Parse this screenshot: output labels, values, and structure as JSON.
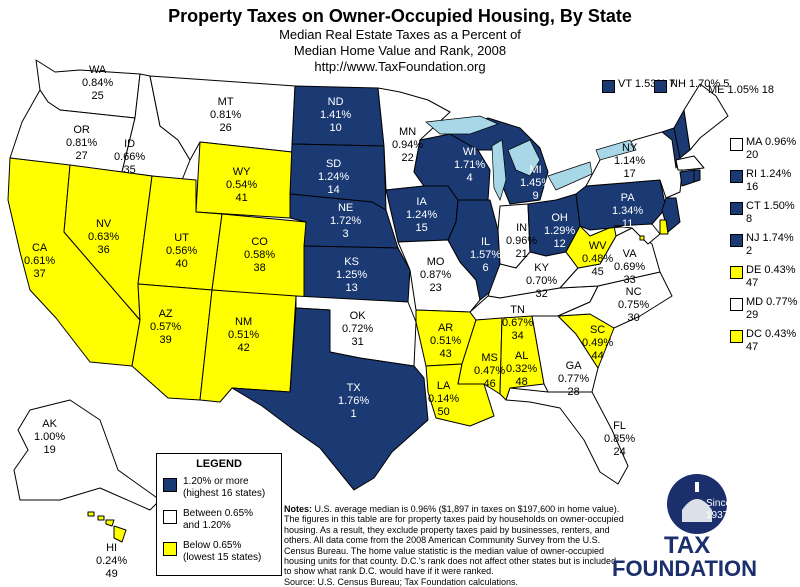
{
  "title": "Property Taxes on Owner-Occupied Housing, By State",
  "subtitle_lines": [
    "Median Real Estate Taxes as a Percent of",
    "Median Home Value and Rank, 2008",
    "http://www.TaxFoundation.org"
  ],
  "colors": {
    "high": "#1b3a73",
    "mid": "#ffffff",
    "low": "#ffff00",
    "lakes": "#a8d8e8",
    "border": "#000000"
  },
  "states": {
    "WA": {
      "pct": "0.84%",
      "rank": "25",
      "tier": "mid"
    },
    "OR": {
      "pct": "0.81%",
      "rank": "27",
      "tier": "mid"
    },
    "CA": {
      "pct": "0.61%",
      "rank": "37",
      "tier": "low"
    },
    "ID": {
      "pct": "0.66%",
      "rank": "35",
      "tier": "mid"
    },
    "NV": {
      "pct": "0.63%",
      "rank": "36",
      "tier": "low"
    },
    "MT": {
      "pct": "0.81%",
      "rank": "26",
      "tier": "mid"
    },
    "WY": {
      "pct": "0.54%",
      "rank": "41",
      "tier": "low"
    },
    "UT": {
      "pct": "0.56%",
      "rank": "40",
      "tier": "low"
    },
    "AZ": {
      "pct": "0.57%",
      "rank": "39",
      "tier": "low"
    },
    "CO": {
      "pct": "0.58%",
      "rank": "38",
      "tier": "low"
    },
    "NM": {
      "pct": "0.51%",
      "rank": "42",
      "tier": "low"
    },
    "ND": {
      "pct": "1.41%",
      "rank": "10",
      "tier": "high"
    },
    "SD": {
      "pct": "1.24%",
      "rank": "14",
      "tier": "high"
    },
    "NE": {
      "pct": "1.72%",
      "rank": "3",
      "tier": "high"
    },
    "KS": {
      "pct": "1.25%",
      "rank": "13",
      "tier": "high"
    },
    "OK": {
      "pct": "0.72%",
      "rank": "31",
      "tier": "mid"
    },
    "TX": {
      "pct": "1.76%",
      "rank": "1",
      "tier": "high"
    },
    "MN": {
      "pct": "0.94%",
      "rank": "22",
      "tier": "mid"
    },
    "IA": {
      "pct": "1.24%",
      "rank": "15",
      "tier": "high"
    },
    "MO": {
      "pct": "0.87%",
      "rank": "23",
      "tier": "mid"
    },
    "AR": {
      "pct": "0.51%",
      "rank": "43",
      "tier": "low"
    },
    "LA": {
      "pct": "0.14%",
      "rank": "50",
      "tier": "low"
    },
    "WI": {
      "pct": "1.71%",
      "rank": "4",
      "tier": "high"
    },
    "IL": {
      "pct": "1.57%",
      "rank": "6",
      "tier": "high"
    },
    "MI": {
      "pct": "1.45%",
      "rank": "9",
      "tier": "high"
    },
    "IN": {
      "pct": "0.96%",
      "rank": "21",
      "tier": "mid"
    },
    "OH": {
      "pct": "1.29%",
      "rank": "12",
      "tier": "high"
    },
    "KY": {
      "pct": "0.70%",
      "rank": "32",
      "tier": "mid"
    },
    "TN": {
      "pct": "0.67%",
      "rank": "34",
      "tier": "mid"
    },
    "MS": {
      "pct": "0.47%",
      "rank": "46",
      "tier": "low"
    },
    "AL": {
      "pct": "0.32%",
      "rank": "48",
      "tier": "low"
    },
    "GA": {
      "pct": "0.77%",
      "rank": "28",
      "tier": "mid"
    },
    "FL": {
      "pct": "0.85%",
      "rank": "24",
      "tier": "mid"
    },
    "SC": {
      "pct": "0.49%",
      "rank": "44",
      "tier": "low"
    },
    "NC": {
      "pct": "0.75%",
      "rank": "30",
      "tier": "mid"
    },
    "VA": {
      "pct": "0.69%",
      "rank": "33",
      "tier": "mid"
    },
    "WV": {
      "pct": "0.48%",
      "rank": "45",
      "tier": "low"
    },
    "PA": {
      "pct": "1.34%",
      "rank": "11",
      "tier": "high"
    },
    "NY": {
      "pct": "1.14%",
      "rank": "17",
      "tier": "mid"
    },
    "VT": {
      "pct": "1.53%",
      "rank": "7",
      "tier": "high"
    },
    "NH": {
      "pct": "1.70%",
      "rank": "5",
      "tier": "high"
    },
    "ME": {
      "pct": "1.05%",
      "rank": "18",
      "tier": "mid"
    },
    "MA": {
      "pct": "0.96%",
      "rank": "20",
      "tier": "mid"
    },
    "RI": {
      "pct": "1.24%",
      "rank": "16",
      "tier": "high"
    },
    "CT": {
      "pct": "1.50%",
      "rank": "8",
      "tier": "high"
    },
    "NJ": {
      "pct": "1.74%",
      "rank": "2",
      "tier": "high"
    },
    "DE": {
      "pct": "0.43%",
      "rank": "47",
      "tier": "low"
    },
    "MD": {
      "pct": "0.77%",
      "rank": "29",
      "tier": "mid"
    },
    "DC": {
      "pct": "0.43%",
      "rank": "47",
      "tier": "low"
    },
    "AK": {
      "pct": "1.00%",
      "rank": "19",
      "tier": "mid"
    },
    "HI": {
      "pct": "0.24%",
      "rank": "49",
      "tier": "low"
    }
  },
  "legend": {
    "title": "LEGEND",
    "items": [
      {
        "text": "1.20% or more\n(highest 16 states)",
        "tier": "high"
      },
      {
        "text": "Between 0.65%\nand 1.20%",
        "tier": "mid"
      },
      {
        "text": "Below 0.65%\n(lowest 15 states)",
        "tier": "low"
      }
    ]
  },
  "notes": {
    "label": "Notes:",
    "text": "U.S. average median is 0.96% ($1,897 in taxes on $197,600 in home value). The figures in this table are for property taxes paid by households on owner-occupied housing. As a result, they exclude property taxes paid by businesses, renters, and others. All data come from the 2008 American Community Survey from the U.S. Census Bureau. The home value statistic is the median value of owner-occupied housing units for that county. D.C.'s rank does not affect other states but is included to show what rank D.C. would have if it were ranked.",
    "source": "Source: U.S. Census Bureau; Tax Foundation calculations."
  },
  "logo": {
    "since": "Since",
    "year": "1937",
    "line1": "TAX",
    "line2": "FOUNDATION"
  }
}
